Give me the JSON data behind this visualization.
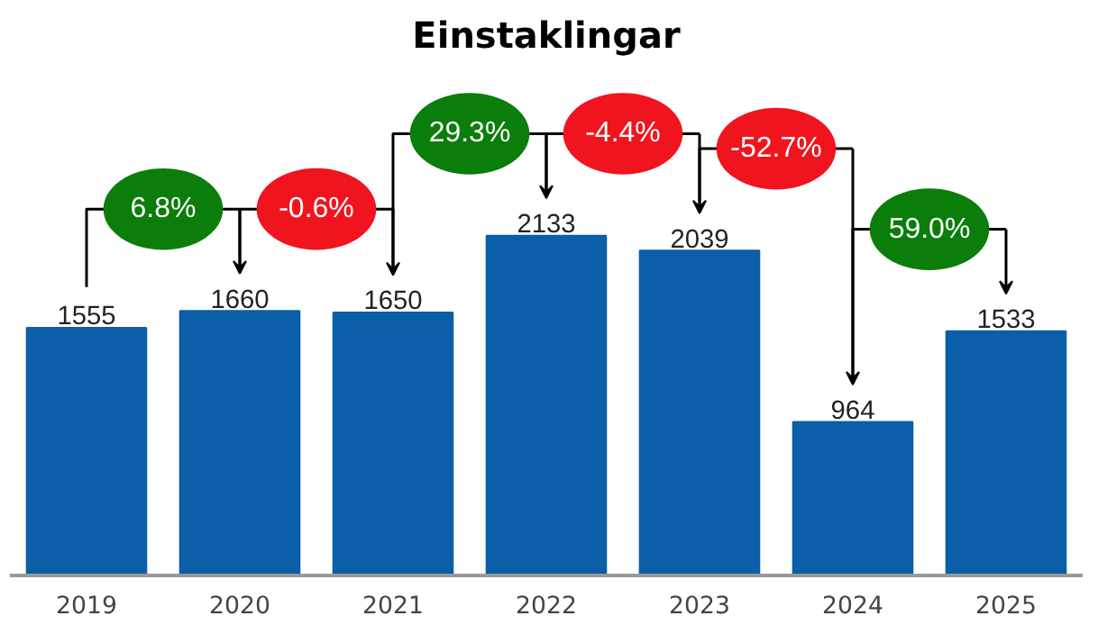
{
  "chart_data": {
    "type": "bar",
    "title": "Einstaklingar",
    "categories": [
      "2019",
      "2020",
      "2021",
      "2022",
      "2023",
      "2024",
      "2025"
    ],
    "values": [
      1555,
      1660,
      1650,
      2133,
      2039,
      964,
      1533
    ],
    "color": "#0b5ea8",
    "data_labels": true,
    "annotations": [
      "6.8%",
      "-0.6%",
      "29.3%",
      "-4.4%",
      "-52.7%",
      "59.0%"
    ]
  }
}
